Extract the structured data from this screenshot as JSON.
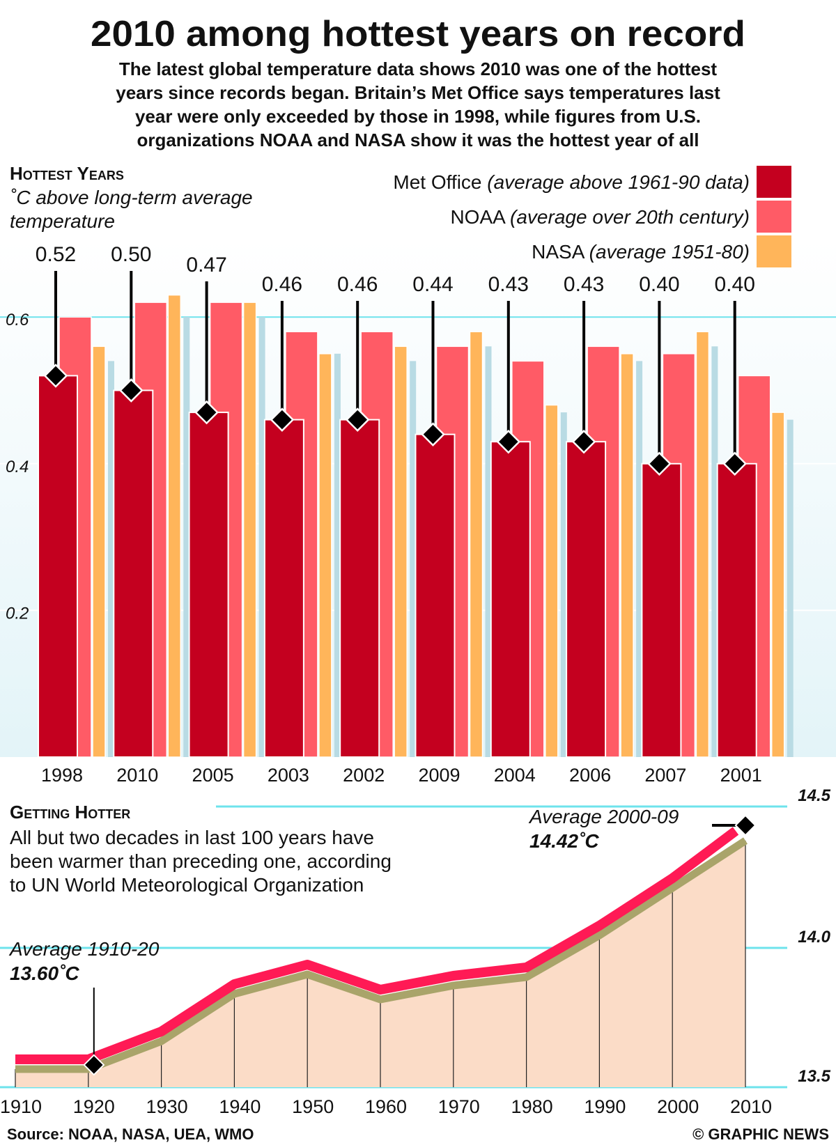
{
  "title": "2010 among hottest years on record",
  "subtitle": [
    "The latest global temperature data shows 2010 was one of the hottest",
    "years since records began. Britain’s Met Office says temperatures last",
    "year were only exceeded by those in 1998, while figures from U.S.",
    "organizations NOAA and NASA show it was the hottest year of all"
  ],
  "source": "Source: NOAA, NASA, UEA, WMO",
  "credit": "© GRAPHIC NEWS",
  "colors": {
    "met": "#c4001f",
    "noaa": "#ff5b66",
    "nasa": "#ffb55a",
    "shadow": "#b9dbe4",
    "grid": "#6ee3ec",
    "line": "#ff1a55",
    "line_shadow": "#a9a46a",
    "fill": "#fbdcc7"
  },
  "chart_data": [
    {
      "type": "bar",
      "title": "Hottest Years",
      "ylabel_lines": [
        "˚C above long-term average",
        "temperature"
      ],
      "categories": [
        "1998",
        "2010",
        "2005",
        "2003",
        "2002",
        "2009",
        "2004",
        "2006",
        "2007",
        "2001"
      ],
      "series": [
        {
          "name": "Met Office",
          "note": "(average above 1961-90 data)",
          "values": [
            0.52,
            0.5,
            0.47,
            0.46,
            0.46,
            0.44,
            0.43,
            0.43,
            0.4,
            0.4
          ]
        },
        {
          "name": "NOAA",
          "note": "(average over 20th century)",
          "values": [
            0.6,
            0.62,
            0.62,
            0.58,
            0.58,
            0.56,
            0.54,
            0.56,
            0.55,
            0.52
          ]
        },
        {
          "name": "NASA",
          "note": "(average 1951-80)",
          "values": [
            0.56,
            0.63,
            0.62,
            0.55,
            0.56,
            0.58,
            0.48,
            0.55,
            0.58,
            0.47
          ]
        },
        {
          "name": "",
          "values": [
            0.54,
            0.6,
            0.6,
            0.55,
            0.54,
            0.56,
            0.47,
            0.54,
            0.56,
            0.46
          ]
        }
      ],
      "data_labels": [
        "0.52",
        "0.50",
        "0.47",
        "0.46",
        "0.46",
        "0.44",
        "0.43",
        "0.43",
        "0.40",
        "0.40"
      ],
      "yticks": [
        "0.2",
        "0.4",
        "0.6"
      ],
      "ylim": [
        0,
        0.66
      ],
      "grid": true,
      "legend": "top-right"
    },
    {
      "type": "area",
      "title": "Getting Hotter",
      "description": [
        "All but two decades in last 100 years have",
        "been warmer than preceding one, according",
        "to UN World Meteorological Organization"
      ],
      "x": [
        "1910",
        "1920",
        "1930",
        "1940",
        "1950",
        "1960",
        "1970",
        "1980",
        "1990",
        "2000",
        "2010"
      ],
      "values": [
        13.6,
        13.6,
        13.7,
        13.87,
        13.94,
        13.85,
        13.9,
        13.93,
        14.08,
        14.25,
        14.42
      ],
      "yticks": [
        "13.5",
        "14.0",
        "14.5"
      ],
      "ylim": [
        13.5,
        14.5
      ],
      "annotations": [
        {
          "label": "Average 1910-20",
          "value": "13.60˚C"
        },
        {
          "label": "Average 2000-09",
          "value": "14.42˚C"
        }
      ]
    }
  ]
}
